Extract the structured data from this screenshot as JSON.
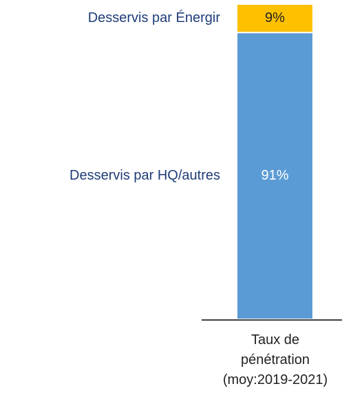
{
  "chart_data": {
    "type": "stacked_bar",
    "categories": [
      "Taux de pénétration (moy:2019-2021)"
    ],
    "series": [
      {
        "name": "Desservis par HQ/autres",
        "color": "#5b9bd5",
        "values": [
          91
        ],
        "value_labels": [
          "91%"
        ]
      },
      {
        "name": "Desservis par Énergir",
        "color": "#ffc000",
        "values": [
          9
        ],
        "value_labels": [
          "9%"
        ]
      }
    ],
    "ylim": [
      0,
      100
    ]
  }
}
